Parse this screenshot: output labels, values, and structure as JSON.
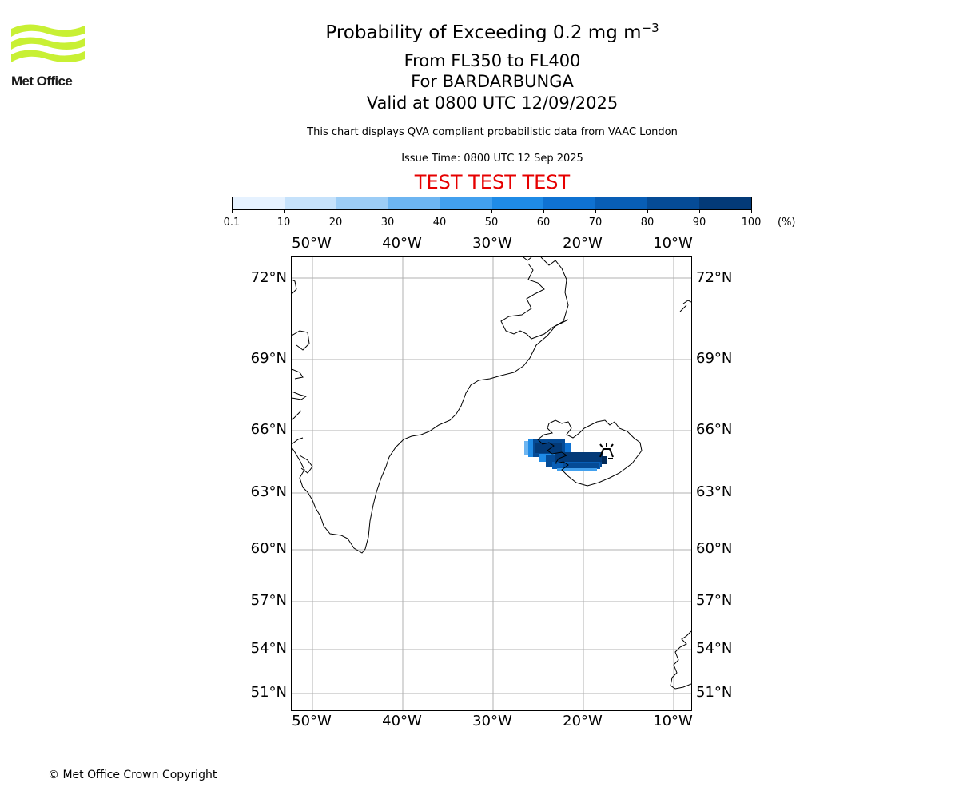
{
  "header": {
    "title_main": "Probability of Exceeding 0.2 mg m",
    "title_sup": "−3",
    "level_line": "From FL350 to FL400",
    "volcano_line": "For BARDARBUNGA",
    "valid_line": "Valid at 0800 UTC 12/09/2025",
    "description": "This chart displays QVA compliant probabilistic data from VAAC London",
    "issue_time": "Issue Time: 0800 UTC 12 Sep 2025",
    "test_banner": "TEST TEST TEST"
  },
  "logo": {
    "text": "Met Office",
    "color": "#c8f034"
  },
  "colorbar": {
    "unit": "(%)",
    "ticks": [
      "0.1",
      "10",
      "20",
      "30",
      "40",
      "50",
      "60",
      "70",
      "80",
      "90",
      "100"
    ],
    "colors": [
      "#e6f2ff",
      "#c6e2fb",
      "#9ccdf6",
      "#6db5f1",
      "#42a0ee",
      "#1f8be6",
      "#0f72d2",
      "#085eb6",
      "#054b96",
      "#033a78",
      "#022a58"
    ]
  },
  "map": {
    "lon_labels": [
      "50°W",
      "40°W",
      "30°W",
      "20°W",
      "10°W"
    ],
    "lat_labels": [
      "72°N",
      "69°N",
      "66°N",
      "63°N",
      "60°N",
      "57°N",
      "54°N",
      "51°N"
    ],
    "gridline_color": "#b0b0b0",
    "coastline_color": "#000000",
    "volcano": "BARDARBUNGA",
    "volcano_icon": "volcano-icon"
  },
  "footer": {
    "copyright": "© Met Office Crown Copyright"
  }
}
